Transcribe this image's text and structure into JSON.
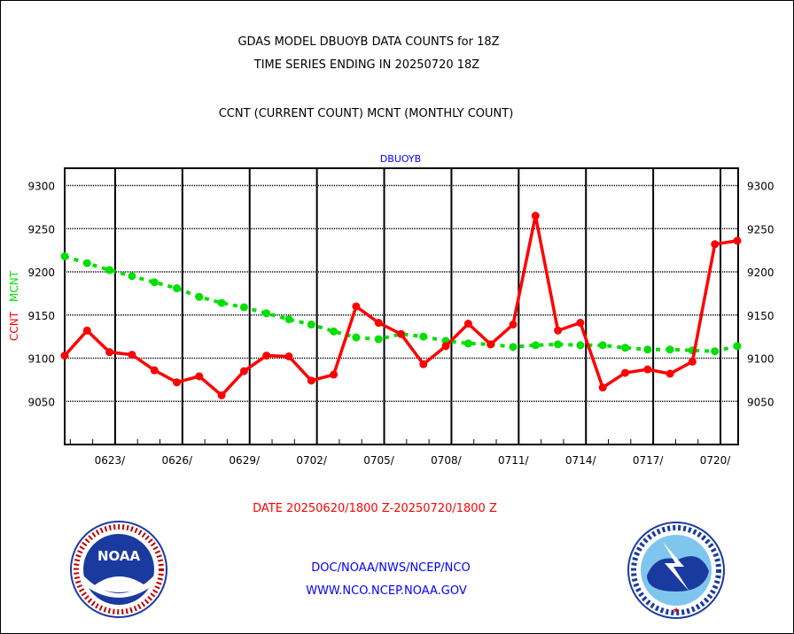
{
  "header": {
    "title_line1": "GDAS MODEL DBUOYB DATA COUNTS for 18Z",
    "title_line2": "TIME SERIES ENDING IN 20250720 18Z",
    "subtitle": "CCNT (CURRENT COUNT) MCNT (MONTHLY COUNT)"
  },
  "footer": {
    "date_range": "DATE 20250620/1800 Z-20250720/1800 Z",
    "org_path": "DOC/NOAA/NWS/NCEP/NCO",
    "website": "WWW.NCO.NCEP.NOAA.GOV"
  },
  "logos": {
    "noaa": "NOAA - NATIONAL OCEANIC AND ATMOSPHERIC ADMINISTRATION - U.S. DEPARTMENT OF COMMERCE",
    "nws": "NATIONAL WEATHER SERVICE"
  },
  "colors": {
    "ccnt": "#ff0000",
    "mcnt": "#00e000",
    "title": "#000000",
    "link": "#0000ff"
  },
  "chart_data": {
    "type": "line",
    "title": "DBUOYB",
    "xlabel": "",
    "ylabel_parts": [
      "CCNT",
      "MCNT"
    ],
    "ylim": [
      9000,
      9320
    ],
    "yticks": [
      9050,
      9100,
      9150,
      9200,
      9250,
      9300
    ],
    "ytick_labels": [
      "9050",
      "9100",
      "9150",
      "9200",
      "9250",
      "9300"
    ],
    "x_day_range": [
      0,
      30
    ],
    "xtick_labels": [
      "0623/",
      "0626/",
      "0629/",
      "0702/",
      "0705/",
      "0708/",
      "0711/",
      "0714/",
      "0717/",
      "0720/"
    ],
    "xtick_days": [
      2.25,
      5.25,
      8.25,
      11.25,
      14.25,
      17.25,
      20.25,
      23.25,
      26.25,
      29.25
    ],
    "grid": true,
    "series": [
      {
        "name": "CCNT",
        "color": "#ff0000",
        "style": "solid-markers",
        "values": [
          9103,
          9132,
          9107,
          9104,
          9086,
          9072,
          9079,
          9057,
          9085,
          9103,
          9102,
          9074,
          9081,
          9160,
          9141,
          9128,
          9093,
          9114,
          9140,
          9116,
          9139,
          9265,
          9132,
          9141,
          9066,
          9083,
          9087,
          9082,
          9096,
          9232,
          9236
        ]
      },
      {
        "name": "MCNT",
        "color": "#00e000",
        "style": "dashed-markers",
        "values": [
          9218,
          9210,
          9202,
          9195,
          9188,
          9181,
          9171,
          9164,
          9159,
          9152,
          9145,
          9139,
          9131,
          9124,
          9122,
          9128,
          9125,
          9120,
          9117,
          9116,
          9113,
          9115,
          9116,
          9115,
          9115,
          9112,
          9110,
          9110,
          9109,
          9108,
          9114
        ]
      }
    ]
  }
}
